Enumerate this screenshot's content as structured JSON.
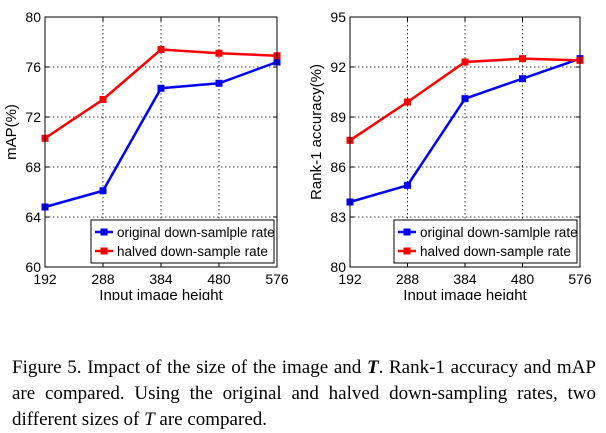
{
  "chart_data": [
    {
      "type": "line",
      "categories": [
        "192",
        "288",
        "384",
        "480",
        "576"
      ],
      "xlabel": "Input image height",
      "ylabel": "mAP(%)",
      "ylim": [
        60,
        80
      ],
      "yticks": [
        "60",
        "64",
        "68",
        "72",
        "76",
        "80"
      ],
      "grid": true,
      "legend_placement": "bottom-right",
      "series": [
        {
          "name": "original down-samlple rate",
          "color": "#0000ff",
          "values": [
            64.8,
            66.1,
            74.3,
            74.7,
            76.4
          ]
        },
        {
          "name": "halved down-sample rate",
          "color": "#ff0000",
          "values": [
            70.3,
            73.4,
            77.4,
            77.1,
            76.9
          ]
        }
      ]
    },
    {
      "type": "line",
      "categories": [
        "192",
        "288",
        "384",
        "480",
        "576"
      ],
      "xlabel": "Input image height",
      "ylabel": "Rank-1 accuracy(%)",
      "ylim": [
        80,
        95
      ],
      "yticks": [
        "80",
        "83",
        "86",
        "89",
        "92",
        "95"
      ],
      "grid": true,
      "legend_placement": "bottom-right",
      "series": [
        {
          "name": "original down-samlple rate",
          "color": "#0000ff",
          "values": [
            83.9,
            84.9,
            90.1,
            91.3,
            92.5
          ]
        },
        {
          "name": "halved down-sample rate",
          "color": "#ff0000",
          "values": [
            87.6,
            89.9,
            92.3,
            92.5,
            92.4
          ]
        }
      ]
    }
  ],
  "caption": {
    "prefix": "Figure 5. Impact of the size of the image and ",
    "symbol": "T",
    "middle": ". Rank-1 accuracy and mAP are compared. Using the original and halved down-sampling rates, two different sizes of ",
    "symbol2": "T",
    "suffix": " are compared."
  }
}
